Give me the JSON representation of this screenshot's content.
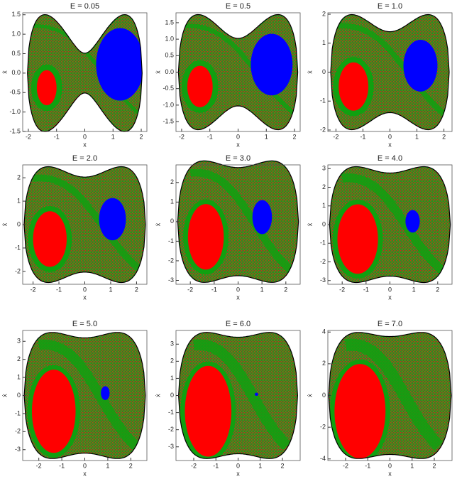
{
  "chart_data": [
    {
      "type": "basin",
      "title": "E = 0.05",
      "xlabel": "x",
      "ylabel": "ẋ",
      "xlim": [
        -2.2,
        2.2
      ],
      "ylim": [
        -1.5,
        1.55
      ],
      "xticks": [
        -2,
        -1,
        0,
        1,
        2
      ],
      "yticks": [
        {
          "value": -1.5,
          "label": "-1.5"
        },
        {
          "value": -1.0,
          "label": "-1.0"
        },
        {
          "value": -0.5,
          "label": "-0.5"
        },
        {
          "value": 0,
          "label": "0.0"
        },
        0.5,
        {
          "value": 1.0,
          "label": "1.0"
        },
        1.5
      ]
    },
    {
      "type": "basin",
      "title": "E = 0.5",
      "xlabel": "x",
      "ylabel": "ẋ",
      "xlim": [
        -2.2,
        2.2
      ],
      "ylim": [
        -1.8,
        1.8
      ],
      "xticks": [
        -2,
        -1,
        0,
        1,
        2
      ],
      "yticks": [
        {
          "value": -1.5,
          "label": "-1.5"
        },
        {
          "value": -1.0,
          "label": "-1.0"
        },
        {
          "value": -0.5,
          "label": "-0.5"
        },
        {
          "value": 0,
          "label": "0.0"
        },
        0.5,
        {
          "value": 1.0,
          "label": "1.0"
        },
        1.5
      ]
    },
    {
      "type": "basin",
      "title": "E = 1.0",
      "xlabel": "x",
      "ylabel": "ẋ",
      "xlim": [
        -2.3,
        2.3
      ],
      "ylim": [
        -2.05,
        2.05
      ],
      "xticks": [
        -2,
        -1,
        0,
        1,
        2
      ],
      "yticks": [
        -2,
        -1,
        0,
        1,
        2
      ]
    },
    {
      "type": "basin",
      "title": "E = 2.0",
      "xlabel": "x",
      "ylabel": "ẋ",
      "xlim": [
        -2.4,
        2.4
      ],
      "ylim": [
        -2.55,
        2.55
      ],
      "xticks": [
        -2,
        -1,
        0,
        1,
        2
      ],
      "yticks": [
        -2,
        -1,
        0,
        1,
        2
      ]
    },
    {
      "type": "basin",
      "title": "E = 3.0",
      "xlabel": "x",
      "ylabel": "ẋ",
      "xlim": [
        -2.6,
        2.6
      ],
      "ylim": [
        -3.2,
        2.9
      ],
      "xticks": [
        -2,
        -1,
        0,
        1,
        2
      ],
      "yticks": [
        -3,
        -2,
        -1,
        0,
        1,
        2
      ]
    },
    {
      "type": "basin",
      "title": "E = 4.0",
      "xlabel": "x",
      "ylabel": "ẋ",
      "xlim": [
        -2.6,
        2.6
      ],
      "ylim": [
        -3.2,
        3.2
      ],
      "xticks": [
        -2,
        -1,
        0,
        1,
        2
      ],
      "yticks": [
        -3,
        -2,
        -1,
        0,
        1,
        2,
        3
      ]
    },
    {
      "type": "basin",
      "title": "E = 5.0",
      "xlabel": "x",
      "ylabel": "ẋ",
      "xlim": [
        -2.7,
        2.7
      ],
      "ylim": [
        -3.6,
        3.6
      ],
      "xticks": [
        -2,
        -1,
        0,
        1,
        2
      ],
      "yticks": [
        -3,
        -2,
        -1,
        0,
        1,
        2,
        3
      ]
    },
    {
      "type": "basin",
      "title": "E = 6.0",
      "xlabel": "x",
      "ylabel": "ẋ",
      "xlim": [
        -2.8,
        2.8
      ],
      "ylim": [
        -3.8,
        3.8
      ],
      "xticks": [
        -2,
        -1,
        0,
        1,
        2
      ],
      "yticks": [
        -3,
        -2,
        -1,
        0,
        1,
        2,
        3
      ]
    },
    {
      "type": "basin",
      "title": "E = 7.0",
      "xlabel": "x",
      "ylabel": "ẋ",
      "xlim": [
        -2.8,
        2.8
      ],
      "ylim": [
        -4.1,
        4.1
      ],
      "xticks": [
        -2,
        -1,
        0,
        1,
        2
      ],
      "yticks": [
        -4,
        -2,
        0,
        2,
        4
      ]
    }
  ]
}
